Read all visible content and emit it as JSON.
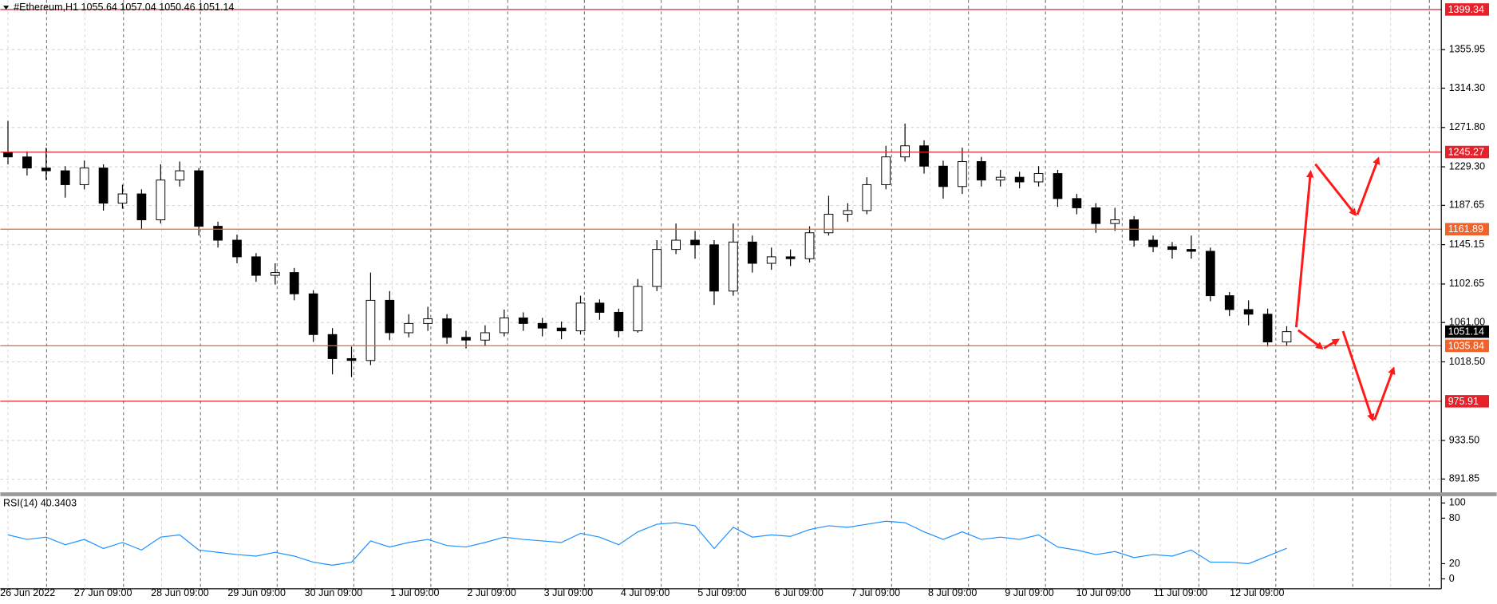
{
  "chart_data": {
    "type": "candlestick",
    "title": "#Ethereum,H1  1055.64 1057.04 1050.46 1051.14",
    "x_labels": [
      "26 Jun 2022",
      "27 Jun 09:00",
      "28 Jun 09:00",
      "29 Jun 09:00",
      "30 Jun 09:00",
      "1 Jul 09:00",
      "2 Jul 09:00",
      "3 Jul 09:00",
      "4 Jul 09:00",
      "5 Jul 09:00",
      "6 Jul 09:00",
      "7 Jul 09:00",
      "8 Jul 09:00",
      "9 Jul 09:00",
      "10 Jul 09:00",
      "11 Jul 09:00",
      "12 Jul 09:00"
    ],
    "open": [
      1245,
      1240,
      1228,
      1225,
      1210,
      1228,
      1190,
      1200,
      1172,
      1215,
      1225,
      1165,
      1150,
      1132,
      1112,
      1115,
      1092,
      1048,
      1022,
      1020,
      1085,
      1050,
      1060,
      1065,
      1045,
      1042,
      1050,
      1066,
      1060,
      1055,
      1052,
      1082,
      1072,
      1052,
      1100,
      1140,
      1150,
      1145,
      1095,
      1148,
      1125,
      1132,
      1130,
      1158,
      1178,
      1182,
      1210,
      1240,
      1252,
      1230,
      1208,
      1235,
      1215,
      1218,
      1213,
      1222,
      1195,
      1185,
      1168,
      1172,
      1150,
      1143,
      1140,
      1138,
      1090,
      1075,
      1070,
      1040
    ],
    "high": [
      1279,
      1246,
      1250,
      1230,
      1236,
      1232,
      1210,
      1205,
      1232,
      1235,
      1228,
      1170,
      1156,
      1136,
      1125,
      1120,
      1096,
      1055,
      1035,
      1115,
      1095,
      1070,
      1078,
      1070,
      1052,
      1058,
      1075,
      1072,
      1066,
      1062,
      1090,
      1086,
      1076,
      1108,
      1150,
      1168,
      1160,
      1150,
      1168,
      1155,
      1142,
      1140,
      1165,
      1198,
      1190,
      1218,
      1252,
      1276,
      1258,
      1236,
      1250,
      1240,
      1226,
      1224,
      1230,
      1226,
      1200,
      1190,
      1185,
      1176,
      1155,
      1148,
      1155,
      1142,
      1094,
      1085,
      1076,
      1057.04
    ],
    "low": [
      1232,
      1220,
      1215,
      1196,
      1205,
      1182,
      1184,
      1162,
      1168,
      1208,
      1155,
      1142,
      1125,
      1105,
      1102,
      1085,
      1040,
      1005,
      1002,
      1015,
      1042,
      1045,
      1052,
      1038,
      1033,
      1036,
      1046,
      1052,
      1046,
      1043,
      1048,
      1064,
      1045,
      1050,
      1095,
      1135,
      1130,
      1080,
      1090,
      1115,
      1118,
      1122,
      1126,
      1155,
      1170,
      1178,
      1205,
      1235,
      1222,
      1195,
      1200,
      1208,
      1208,
      1206,
      1208,
      1186,
      1178,
      1158,
      1160,
      1143,
      1137,
      1130,
      1130,
      1084,
      1068,
      1058,
      1035,
      1036
    ],
    "close": [
      1240,
      1228,
      1225,
      1210,
      1228,
      1190,
      1200,
      1172,
      1215,
      1225,
      1165,
      1150,
      1132,
      1112,
      1115,
      1092,
      1048,
      1022,
      1020,
      1085,
      1050,
      1060,
      1065,
      1045,
      1042,
      1050,
      1066,
      1060,
      1055,
      1052,
      1082,
      1072,
      1052,
      1100,
      1140,
      1150,
      1145,
      1095,
      1148,
      1125,
      1132,
      1130,
      1158,
      1178,
      1182,
      1210,
      1240,
      1252,
      1230,
      1208,
      1235,
      1215,
      1218,
      1213,
      1222,
      1195,
      1185,
      1168,
      1172,
      1150,
      1143,
      1140,
      1138,
      1090,
      1075,
      1070,
      1040,
      1051.14
    ],
    "ylim": [
      876.4,
      1409.6
    ],
    "yticks": [
      1355.95,
      {
        "value": 1314.3,
        "label": "1314.30"
      },
      {
        "value": 1271.8,
        "label": "1271.80"
      },
      {
        "value": 1229.3,
        "label": "1229.30"
      },
      1187.65,
      1145.15,
      1102.65,
      {
        "value": 1061,
        "label": "1061.00"
      },
      {
        "value": 1018.5,
        "label": "1018.50"
      },
      {
        "value": 933.5,
        "label": "933.50"
      },
      891.85
    ],
    "grid": true,
    "levels": [
      {
        "value": 1399.34,
        "color": "#e8202a"
      },
      {
        "value": 1245.27,
        "color": "#e8202a"
      },
      {
        "value": 1161.89,
        "color": "#f0632a"
      },
      {
        "value": 1035.84,
        "color": "#f0632a"
      },
      {
        "value": 975.91,
        "color": "#e8202a"
      }
    ],
    "current": {
      "value": 1051.14,
      "color": "#000000"
    },
    "rsi": {
      "title": "RSI(14) 40.3403",
      "color": "#1e90ff",
      "values": [
        58,
        52,
        55,
        45,
        52,
        40,
        48,
        38,
        55,
        58,
        38,
        35,
        32,
        30,
        35,
        30,
        22,
        18,
        22,
        50,
        42,
        48,
        52,
        44,
        42,
        48,
        55,
        52,
        50,
        48,
        60,
        55,
        45,
        62,
        72,
        74,
        70,
        40,
        68,
        55,
        58,
        56,
        65,
        70,
        68,
        72,
        76,
        74,
        62,
        52,
        62,
        52,
        55,
        52,
        58,
        42,
        38,
        32,
        36,
        28,
        32,
        30,
        38,
        22,
        22,
        20,
        30,
        40.34
      ],
      "ylim": [
        -13,
        109
      ],
      "yticks": [
        100,
        80,
        20,
        0
      ]
    }
  }
}
